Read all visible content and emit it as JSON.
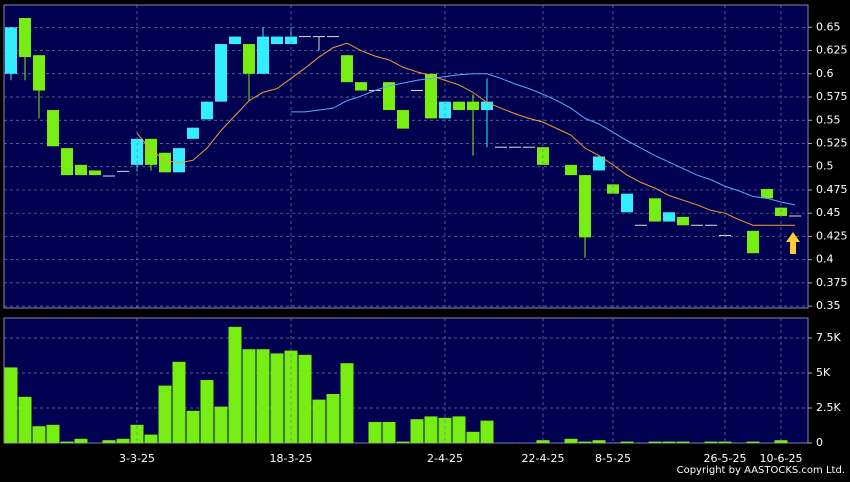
{
  "chart_data": [
    {
      "type": "candlestick",
      "up_color": "#33eeff",
      "down_color": "#77ee11",
      "grid": true,
      "ylim": [
        0.348,
        0.674
      ],
      "yticks": [
        0.35,
        0.375,
        0.4,
        0.425,
        0.45,
        0.475,
        0.5,
        0.525,
        0.55,
        0.575,
        0.6,
        0.625,
        0.65
      ],
      "open": [
        0.6,
        0.66,
        0.62,
        0.561,
        0.52,
        0.502,
        0.496,
        0.49,
        0.495,
        0.502,
        0.53,
        0.515,
        0.494,
        0.53,
        0.551,
        0.57,
        0.632,
        0.632,
        0.6,
        0.632,
        0.632,
        0.64,
        0.64,
        0.64,
        0.62,
        0.591,
        0.582,
        0.591,
        0.561,
        0.582,
        0.6,
        0.552,
        0.57,
        0.57,
        0.561,
        0.521,
        0.521,
        0.521,
        0.521,
        null,
        0.502,
        0.491,
        0.496,
        0.481,
        0.451,
        0.437,
        0.466,
        0.441,
        0.446,
        0.437,
        0.437,
        0.426,
        null,
        0.431,
        0.476,
        0.456,
        0.447
      ],
      "high": [
        0.65,
        0.66,
        0.62,
        0.561,
        0.52,
        0.502,
        0.496,
        0.49,
        0.495,
        0.53,
        0.53,
        0.515,
        0.52,
        0.542,
        0.57,
        0.632,
        0.64,
        0.632,
        0.65,
        0.64,
        0.65,
        0.64,
        0.64,
        0.64,
        0.62,
        0.591,
        0.582,
        0.591,
        0.561,
        0.582,
        0.6,
        0.57,
        0.57,
        0.578,
        0.595,
        0.521,
        0.521,
        0.521,
        0.521,
        null,
        0.502,
        0.491,
        0.511,
        0.481,
        0.471,
        0.437,
        0.466,
        0.451,
        0.446,
        0.437,
        0.437,
        0.426,
        null,
        0.431,
        0.476,
        0.456,
        0.447
      ],
      "low": [
        0.593,
        0.593,
        0.552,
        0.522,
        0.491,
        0.491,
        0.491,
        0.49,
        0.495,
        0.495,
        0.496,
        0.494,
        0.494,
        0.53,
        0.551,
        0.57,
        0.632,
        0.571,
        0.6,
        0.632,
        0.632,
        0.64,
        0.625,
        0.64,
        0.591,
        0.582,
        0.582,
        0.561,
        0.541,
        0.582,
        0.552,
        0.552,
        0.561,
        0.512,
        0.521,
        0.521,
        0.521,
        0.521,
        0.502,
        null,
        0.491,
        0.402,
        0.496,
        0.471,
        0.451,
        0.437,
        0.441,
        0.441,
        0.437,
        0.437,
        0.437,
        0.426,
        null,
        0.407,
        0.466,
        0.447,
        0.447
      ],
      "close": [
        0.65,
        0.618,
        0.582,
        0.522,
        0.491,
        0.491,
        0.491,
        0.49,
        0.495,
        0.53,
        0.502,
        0.494,
        0.52,
        0.542,
        0.57,
        0.632,
        0.64,
        0.6,
        0.64,
        0.64,
        0.64,
        0.64,
        0.64,
        0.64,
        0.591,
        0.582,
        0.582,
        0.561,
        0.541,
        0.582,
        0.552,
        0.57,
        0.561,
        0.561,
        0.57,
        0.521,
        0.521,
        0.521,
        0.502,
        null,
        0.491,
        0.424,
        0.511,
        0.471,
        0.471,
        0.437,
        0.441,
        0.451,
        0.437,
        0.437,
        0.437,
        0.426,
        null,
        0.407,
        0.466,
        0.447,
        0.447
      ],
      "series": [
        {
          "color": "#ff9933",
          "values": [
            null,
            null,
            null,
            null,
            null,
            null,
            null,
            null,
            null,
            0.536,
            0.518,
            0.507,
            0.504,
            0.507,
            0.52,
            0.539,
            0.555,
            0.571,
            0.58,
            0.584,
            0.595,
            0.606,
            0.618,
            0.628,
            0.633,
            0.625,
            0.619,
            0.615,
            0.607,
            0.602,
            0.598,
            0.593,
            0.588,
            0.58,
            0.569,
            0.563,
            0.557,
            0.552,
            0.548,
            0.541,
            0.534,
            0.52,
            0.512,
            0.502,
            0.491,
            0.483,
            0.477,
            0.469,
            0.464,
            0.459,
            0.453,
            0.45,
            0.443,
            0.437,
            0.437,
            0.437,
            0.437
          ]
        },
        {
          "color": "#55aaff",
          "values": [
            null,
            null,
            null,
            null,
            null,
            null,
            null,
            null,
            null,
            null,
            null,
            null,
            null,
            null,
            null,
            null,
            null,
            null,
            null,
            null,
            0.559,
            0.559,
            0.561,
            0.563,
            0.571,
            0.576,
            0.582,
            0.587,
            0.59,
            0.593,
            0.595,
            0.597,
            0.599,
            0.6,
            0.6,
            0.595,
            0.589,
            0.584,
            0.578,
            0.571,
            0.563,
            0.552,
            0.546,
            0.537,
            0.528,
            0.52,
            0.512,
            0.505,
            0.498,
            0.491,
            0.486,
            0.479,
            0.474,
            0.468,
            0.466,
            0.462,
            0.459
          ]
        }
      ]
    },
    {
      "type": "bar",
      "color": "#77ee11",
      "grid": true,
      "ylim": [
        0,
        8930
      ],
      "yticks": [
        0,
        {
          "value": 2500,
          "label": "2.5K"
        },
        {
          "value": 5000,
          "label": "5K"
        },
        {
          "value": 7500,
          "label": "7.5K"
        }
      ],
      "categories": [
        null,
        null,
        null,
        null,
        null,
        null,
        null,
        null,
        null,
        "3-3-25",
        null,
        null,
        null,
        null,
        null,
        null,
        null,
        null,
        null,
        null,
        "18-3-25",
        null,
        null,
        null,
        null,
        null,
        null,
        null,
        null,
        null,
        null,
        "2-4-25",
        null,
        null,
        null,
        null,
        null,
        null,
        "22-4-25",
        null,
        null,
        null,
        null,
        "8-5-25",
        null,
        null,
        null,
        null,
        null,
        null,
        null,
        "26-5-25",
        null,
        null,
        null,
        "10-6-25",
        null
      ],
      "values": [
        5400,
        3300,
        1200,
        1300,
        100,
        300,
        0,
        200,
        300,
        1300,
        600,
        4100,
        5800,
        2300,
        4500,
        2600,
        8300,
        6700,
        6700,
        6400,
        6600,
        6300,
        3100,
        3500,
        5700,
        0,
        1500,
        1500,
        100,
        1700,
        1900,
        1800,
        1900,
        800,
        1600,
        0,
        0,
        0,
        200,
        0,
        300,
        100,
        200,
        0,
        100,
        0,
        100,
        100,
        100,
        0,
        100,
        100,
        0,
        100,
        0,
        200,
        0
      ]
    }
  ],
  "copyright": "Copyright by AASTOCKS.com Ltd."
}
